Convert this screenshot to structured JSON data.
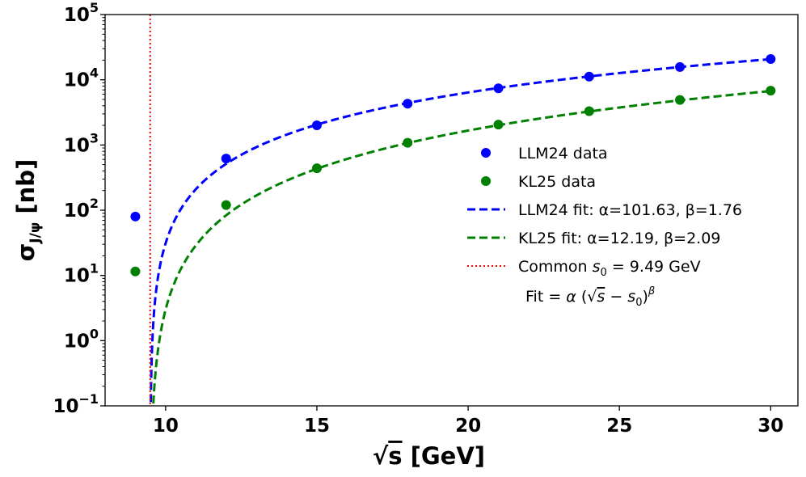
{
  "chart_data": {
    "type": "scatter",
    "xlabel": "√s [GeV]",
    "ylabel": "σJ/ψ [nb]",
    "xlim": [
      8.0,
      30.9
    ],
    "ylim": [
      0.1,
      100000
    ],
    "yscale": "log",
    "grid": false,
    "legend_position": "center-right",
    "x_ticks": [
      10,
      15,
      20,
      25,
      30
    ],
    "y_ticks": [
      {
        "value": 0.1,
        "base": "10",
        "exp": "−1"
      },
      {
        "value": 1,
        "base": "10",
        "exp": "0"
      },
      {
        "value": 10,
        "base": "10",
        "exp": "1"
      },
      {
        "value": 100,
        "base": "10",
        "exp": "2"
      },
      {
        "value": 1000,
        "base": "10",
        "exp": "3"
      },
      {
        "value": 10000,
        "base": "10",
        "exp": "4"
      },
      {
        "value": 100000,
        "base": "10",
        "exp": "5"
      }
    ],
    "series": [
      {
        "name": "LLM24 data",
        "kind": "scatter",
        "color": "#0000ff",
        "x": [
          9,
          12,
          15,
          18,
          21,
          24,
          27,
          30
        ],
        "y": [
          80,
          620,
          2000,
          4300,
          7400,
          11200,
          15700,
          20800
        ]
      },
      {
        "name": "KL25 data",
        "kind": "scatter",
        "color": "#008000",
        "x": [
          9,
          12,
          15,
          18,
          21,
          24,
          27,
          30
        ],
        "y": [
          11.5,
          120,
          440,
          1080,
          2050,
          3300,
          4900,
          6800
        ]
      },
      {
        "name": "LLM24 fit: α=101.63, β=1.76",
        "kind": "fit",
        "color": "#0000ff",
        "alpha": 101.63,
        "beta": 1.76,
        "s0": 9.49,
        "x_range": [
          9.49,
          30
        ]
      },
      {
        "name": "KL25 fit: α=12.19, β=2.09",
        "kind": "fit",
        "color": "#008000",
        "alpha": 12.19,
        "beta": 2.09,
        "s0": 9.49,
        "x_range": [
          9.49,
          30
        ]
      },
      {
        "name": "Common s0 = 9.49 GeV",
        "kind": "vline",
        "color": "#ff0000",
        "x": 9.49
      }
    ],
    "legend": [
      {
        "label": "LLM24 data",
        "marker": "dot",
        "color": "#0000ff"
      },
      {
        "label": "KL25 data",
        "marker": "dot",
        "color": "#008000"
      },
      {
        "label": "LLM24 fit: α=101.63, β=1.76",
        "marker": "dash",
        "color": "#0000ff"
      },
      {
        "label": "KL25 fit: α=12.19, β=2.09",
        "marker": "dash",
        "color": "#008000"
      },
      {
        "label": "Common s0 = 9.49 GeV",
        "marker": "dot-line",
        "color": "#ff0000"
      }
    ],
    "annotation": "Fit = α (√s − s0)^β"
  }
}
